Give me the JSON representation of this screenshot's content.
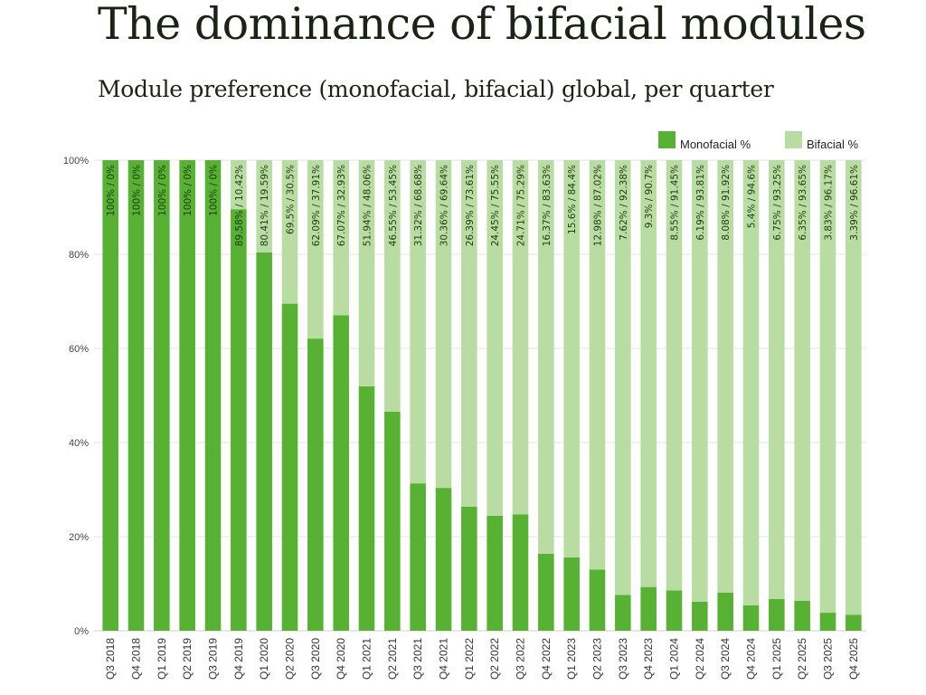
{
  "header": {
    "title": "The dominance of bifacial modules",
    "subtitle": "Module preference (monofacial, bifacial) global, per quarter"
  },
  "colors": {
    "monofacial": "#57b132",
    "bifacial": "#b9dca2",
    "gridline": "#e3e3e3",
    "text": "#1c2316"
  },
  "chart_data": {
    "type": "bar",
    "stacked": true,
    "title": "The dominance of bifacial modules",
    "subtitle": "Module preference (monofacial, bifacial) global, per quarter",
    "xlabel": "",
    "ylabel": "",
    "ylim": [
      0,
      100
    ],
    "yticks": [
      "0%",
      "20%",
      "40%",
      "60%",
      "80%",
      "100%"
    ],
    "ytick_values": [
      0,
      20,
      40,
      60,
      80,
      100
    ],
    "grid": true,
    "legend_position": "top-right",
    "categories": [
      "Q3 2018",
      "Q4 2018",
      "Q1 2019",
      "Q2 2019",
      "Q3 2019",
      "Q4 2019",
      "Q1 2020",
      "Q2 2020",
      "Q3 2020",
      "Q4 2020",
      "Q1 2021",
      "Q2 2021",
      "Q3 2021",
      "Q4 2021",
      "Q1 2022",
      "Q2 2022",
      "Q3 2022",
      "Q4 2022",
      "Q1 2023",
      "Q2 2023",
      "Q3 2023",
      "Q4 2023",
      "Q1 2024",
      "Q2 2024",
      "Q3 2024",
      "Q4 2024",
      "Q1 2025",
      "Q2 2025",
      "Q3 2025",
      "Q4 2025"
    ],
    "series": [
      {
        "name": "Monofacial %",
        "color": "#57b132",
        "values": [
          100,
          100,
          100,
          100,
          100,
          89.58,
          80.41,
          69.5,
          62.09,
          67.07,
          51.94,
          46.55,
          31.32,
          30.36,
          26.39,
          24.45,
          24.71,
          16.37,
          15.6,
          12.98,
          7.62,
          9.3,
          8.55,
          6.19,
          8.08,
          5.4,
          6.75,
          6.35,
          3.83,
          3.39
        ]
      },
      {
        "name": "Bifacial %",
        "color": "#b9dca2",
        "values": [
          0,
          0,
          0,
          0,
          0,
          10.42,
          19.59,
          30.5,
          37.91,
          32.93,
          48.06,
          53.45,
          68.68,
          69.64,
          73.61,
          75.55,
          75.29,
          83.63,
          84.4,
          87.02,
          92.38,
          90.7,
          91.45,
          93.81,
          91.92,
          94.6,
          93.25,
          93.65,
          96.17,
          96.61
        ]
      }
    ],
    "data_labels": [
      "100% / 0%",
      "100% / 0%",
      "100% / 0%",
      "100% / 0%",
      "100% / 0%",
      "89.58% / 10.42%",
      "80.41% / 19.59%",
      "69.5% / 30.5%",
      "62.09% / 37.91%",
      "67.07% / 32.93%",
      "51.94% / 48.06%",
      "46.55% / 53.45%",
      "31.32% / 68.68%",
      "30.36% / 69.64%",
      "26.39% / 73.61%",
      "24.45% / 75.55%",
      "24.71% / 75.29%",
      "16.37% / 83.63%",
      "15.6% / 84.4%",
      "12.98% / 87.02%",
      "7.62% / 92.38%",
      "9.3% / 90.7%",
      "8.55% / 91.45%",
      "6.19% / 93.81%",
      "8.08% / 91.92%",
      "5.4% / 94.6%",
      "6.75% / 93.25%",
      "6.35% / 93.65%",
      "3.83% / 96.17%",
      "3.39% / 96.61%"
    ]
  }
}
